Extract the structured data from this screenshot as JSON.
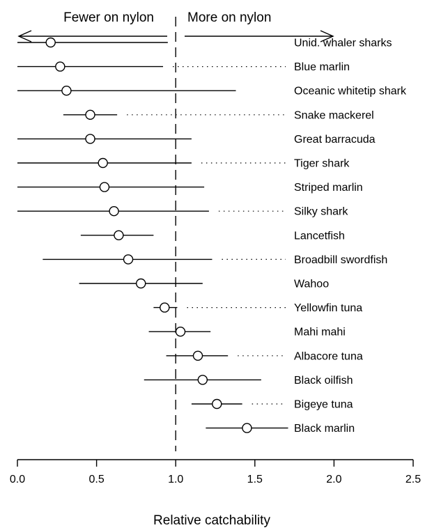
{
  "chart_data": {
    "type": "scatter",
    "subtype": "forest-plot",
    "xlabel": "Relative catchability",
    "xlim": [
      0.0,
      2.5
    ],
    "x_ticks": [
      "0.0",
      "0.5",
      "1.0",
      "1.5",
      "2.0",
      "2.5"
    ],
    "reference_line": 1.0,
    "direction_labels": {
      "left": "Fewer on nylon",
      "right": "More on nylon"
    },
    "marker": "open-circle",
    "point_color": "#000000",
    "rows": [
      {
        "label": "Unid. whaler sharks",
        "estimate": 0.21,
        "ci_low": 0.0,
        "ci_high": 0.95,
        "dotted_leader": false
      },
      {
        "label": "Blue marlin",
        "estimate": 0.27,
        "ci_low": 0.0,
        "ci_high": 0.92,
        "dotted_leader": true
      },
      {
        "label": "Oceanic whitetip shark",
        "estimate": 0.31,
        "ci_low": 0.0,
        "ci_high": 1.38,
        "dotted_leader": false
      },
      {
        "label": "Snake mackerel",
        "estimate": 0.46,
        "ci_low": 0.29,
        "ci_high": 0.63,
        "dotted_leader": true
      },
      {
        "label": "Great barracuda",
        "estimate": 0.46,
        "ci_low": 0.0,
        "ci_high": 1.1,
        "dotted_leader": false
      },
      {
        "label": "Tiger shark",
        "estimate": 0.54,
        "ci_low": 0.0,
        "ci_high": 1.1,
        "dotted_leader": true
      },
      {
        "label": "Striped marlin",
        "estimate": 0.55,
        "ci_low": 0.0,
        "ci_high": 1.18,
        "dotted_leader": false
      },
      {
        "label": "Silky shark",
        "estimate": 0.61,
        "ci_low": 0.0,
        "ci_high": 1.21,
        "dotted_leader": true
      },
      {
        "label": "Lancetfish",
        "estimate": 0.64,
        "ci_low": 0.4,
        "ci_high": 0.86,
        "dotted_leader": false
      },
      {
        "label": "Broadbill swordfish",
        "estimate": 0.7,
        "ci_low": 0.16,
        "ci_high": 1.23,
        "dotted_leader": true
      },
      {
        "label": "Wahoo",
        "estimate": 0.78,
        "ci_low": 0.39,
        "ci_high": 1.17,
        "dotted_leader": false
      },
      {
        "label": "Yellowfin tuna",
        "estimate": 0.93,
        "ci_low": 0.86,
        "ci_high": 1.01,
        "dotted_leader": true
      },
      {
        "label": "Mahi mahi",
        "estimate": 1.03,
        "ci_low": 0.83,
        "ci_high": 1.22,
        "dotted_leader": false
      },
      {
        "label": "Albacore tuna",
        "estimate": 1.14,
        "ci_low": 0.94,
        "ci_high": 1.33,
        "dotted_leader": true
      },
      {
        "label": "Black oilfish",
        "estimate": 1.17,
        "ci_low": 0.8,
        "ci_high": 1.54,
        "dotted_leader": false
      },
      {
        "label": "Bigeye tuna",
        "estimate": 1.26,
        "ci_low": 1.1,
        "ci_high": 1.42,
        "dotted_leader": true
      },
      {
        "label": "Black marlin",
        "estimate": 1.45,
        "ci_low": 1.19,
        "ci_high": 1.71,
        "dotted_leader": false
      }
    ]
  }
}
